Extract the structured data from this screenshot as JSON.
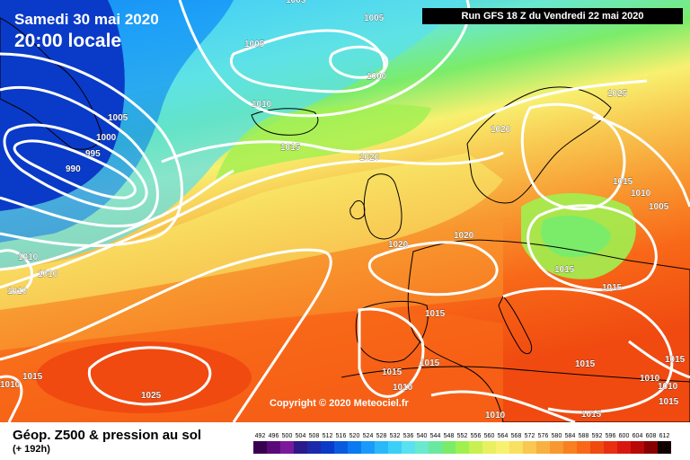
{
  "header": {
    "date": "Samedi 30 mai 2020",
    "time": "20:00 locale",
    "run": "Run GFS 18 Z du Vendredi 22 mai 2020"
  },
  "copyright": "Copyright © 2020 Meteociel.fr",
  "legend": {
    "title": "Géop. Z500 & pression au sol",
    "subtitle": "(+ 192h)",
    "scale_values": [
      492,
      496,
      500,
      504,
      508,
      512,
      516,
      520,
      524,
      528,
      532,
      536,
      540,
      544,
      548,
      552,
      556,
      560,
      564,
      568,
      572,
      576,
      580,
      584,
      588,
      592,
      596,
      600,
      604,
      608,
      612
    ],
    "scale_colors": [
      "#3a0050",
      "#5a0a78",
      "#7a1a9a",
      "#2a1a8a",
      "#1a2aa8",
      "#0a3ac8",
      "#0a5ae0",
      "#0a7af0",
      "#1a9af8",
      "#2ab8f8",
      "#3ad0f8",
      "#5ae0f0",
      "#6ae8d0",
      "#6ae8a0",
      "#7aec6a",
      "#a0f050",
      "#c8f050",
      "#e8f060",
      "#f8f070",
      "#f8e060",
      "#f8c850",
      "#f8b040",
      "#f89830",
      "#f88020",
      "#f86818",
      "#f04a10",
      "#e83010",
      "#d81810",
      "#b80808",
      "#880000",
      "#100000"
    ]
  },
  "isobars": [
    {
      "label": "1005"
    },
    {
      "label": "1005"
    },
    {
      "label": "1005"
    },
    {
      "label": "1000"
    },
    {
      "label": "1005"
    },
    {
      "label": "1000"
    },
    {
      "label": "995"
    },
    {
      "label": "990"
    },
    {
      "label": "1010"
    },
    {
      "label": "1015"
    },
    {
      "label": "1020"
    },
    {
      "label": "1020"
    },
    {
      "label": "1025"
    },
    {
      "label": "1015"
    },
    {
      "label": "1010"
    },
    {
      "label": "1005"
    },
    {
      "label": "1020"
    },
    {
      "label": "1020"
    },
    {
      "label": "1015"
    },
    {
      "label": "1015"
    },
    {
      "label": "1015"
    },
    {
      "label": "1010"
    },
    {
      "label": "1010"
    },
    {
      "label": "1010"
    },
    {
      "label": "1015"
    },
    {
      "label": "1010"
    },
    {
      "label": "1025"
    },
    {
      "label": "1015"
    },
    {
      "label": "1015"
    },
    {
      "label": "1010"
    },
    {
      "label": "1015"
    },
    {
      "label": "1010"
    },
    {
      "label": "1010"
    },
    {
      "label": "1015"
    },
    {
      "label": "1015"
    },
    {
      "label": "1015"
    },
    {
      "label": "1010"
    }
  ]
}
